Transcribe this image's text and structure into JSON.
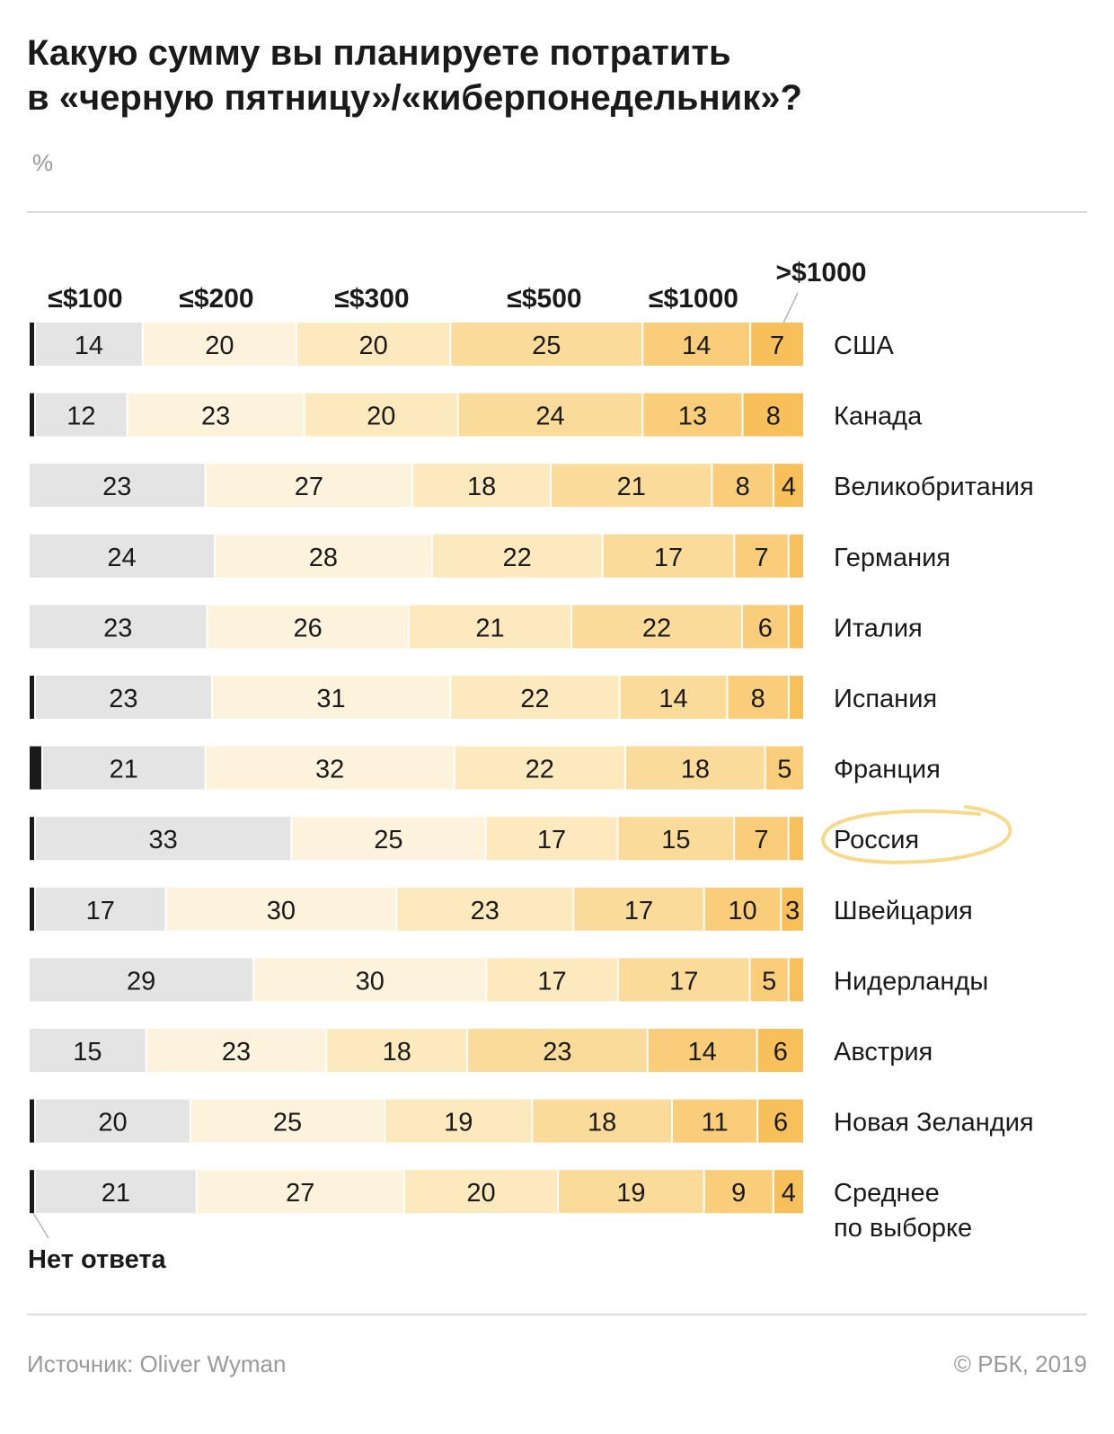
{
  "header": {
    "title_line1": "Какую сумму вы планируете потратить",
    "title_line2": "в «черную пятницу»/«киберпонедельник»?",
    "unit": "%"
  },
  "footer": {
    "source": "Источник: Oliver Wyman",
    "copyright": "© РБК, 2019"
  },
  "colors": {
    "no_answer": "#1a1a1a",
    "segments": [
      "#e4e4e4",
      "#fdf3dc",
      "#fce9bd",
      "#fbdb9a",
      "#f9cd79",
      "#f7c05a"
    ],
    "highlight": "#f7d98a"
  },
  "chart_data": {
    "type": "bar",
    "orientation": "horizontal-stacked",
    "unit": "%",
    "categories_labels": [
      "≤$100",
      "≤$200",
      "≤$300",
      "≤$500",
      "≤$1000",
      ">$1000"
    ],
    "no_answer_label": "Нет ответа",
    "highlighted_row": "Россия",
    "rows": [
      {
        "country": "США",
        "no_answer": 0.5,
        "values": [
          14,
          20,
          20,
          25,
          14,
          7
        ]
      },
      {
        "country": "Канада",
        "no_answer": 0.5,
        "values": [
          12,
          23,
          20,
          24,
          13,
          8
        ]
      },
      {
        "country": "Великобритания",
        "no_answer": 0,
        "values": [
          23,
          27,
          18,
          21,
          8,
          4
        ]
      },
      {
        "country": "Германия",
        "no_answer": 0,
        "values": [
          24,
          28,
          22,
          17,
          7,
          2
        ]
      },
      {
        "country": "Италия",
        "no_answer": 0,
        "values": [
          23,
          26,
          21,
          22,
          6,
          2
        ]
      },
      {
        "country": "Испания",
        "no_answer": 0.5,
        "values": [
          23,
          31,
          22,
          14,
          8,
          2
        ]
      },
      {
        "country": "Франция",
        "no_answer": 1.5,
        "values": [
          21,
          32,
          22,
          18,
          5,
          0
        ]
      },
      {
        "country": "Россия",
        "no_answer": 0.5,
        "values": [
          33,
          25,
          17,
          15,
          7,
          2
        ]
      },
      {
        "country": "Швейцария",
        "no_answer": 0.5,
        "values": [
          17,
          30,
          23,
          17,
          10,
          3
        ]
      },
      {
        "country": "Нидерланды",
        "no_answer": 0,
        "values": [
          29,
          30,
          17,
          17,
          5,
          2
        ]
      },
      {
        "country": "Австрия",
        "no_answer": 0,
        "values": [
          15,
          23,
          18,
          23,
          14,
          6
        ]
      },
      {
        "country": "Новая Зеландия",
        "no_answer": 0.5,
        "values": [
          20,
          25,
          19,
          18,
          11,
          6
        ]
      },
      {
        "country": "Среднее\nпо выборке",
        "country_line1": "Среднее",
        "country_line2": "по выборке",
        "no_answer": 0.5,
        "values": [
          21,
          27,
          20,
          19,
          9,
          4
        ]
      }
    ]
  }
}
